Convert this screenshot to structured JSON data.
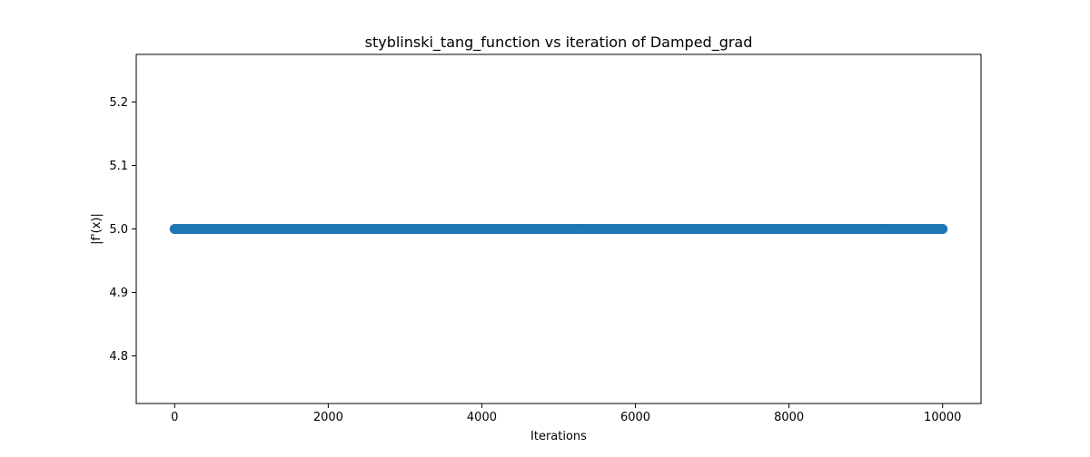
{
  "chart_data": {
    "type": "scatter",
    "title": "styblinski_tang_function vs iteration of Damped_grad",
    "xlabel": "Iterations",
    "ylabel": "|f'(x)|",
    "xlim": [
      -500,
      10500
    ],
    "ylim": [
      4.725,
      5.275
    ],
    "xticks": [
      0,
      2000,
      4000,
      6000,
      8000,
      10000
    ],
    "xtick_labels": [
      "0",
      "2000",
      "4000",
      "6000",
      "8000",
      "10000"
    ],
    "yticks": [
      4.8,
      4.9,
      5.0,
      5.1,
      5.2
    ],
    "ytick_labels": [
      "4.8",
      "4.9",
      "5.0",
      "5.1",
      "5.2"
    ],
    "grid": false,
    "legend": "none",
    "color": "#1f77b4",
    "series": [
      {
        "x_start": 0,
        "x_end": 10000,
        "x_step": 1,
        "y_constant": 5.0
      }
    ]
  }
}
